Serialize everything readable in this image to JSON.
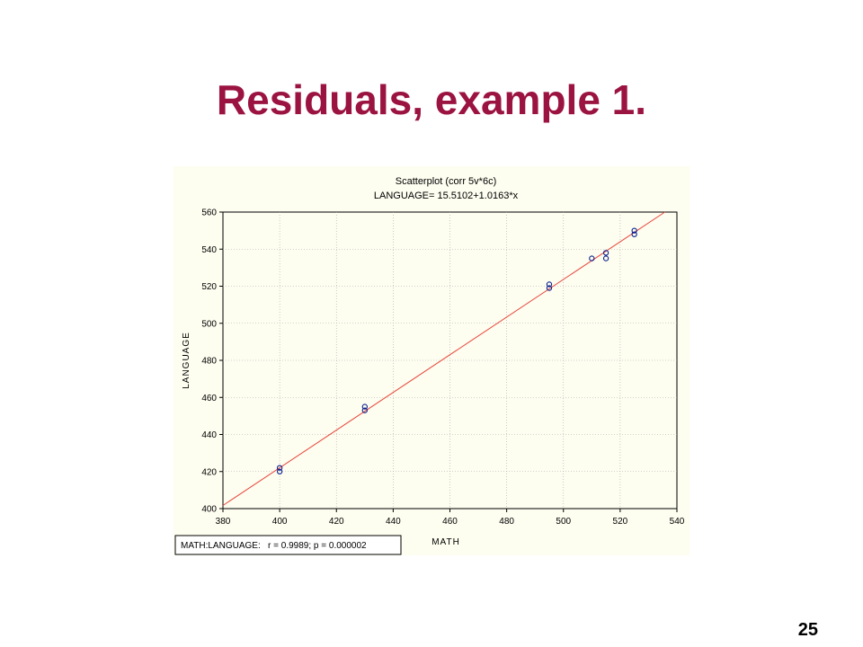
{
  "slide": {
    "title": "Residuals, example 1.",
    "page_number": "25"
  },
  "chart_data": {
    "type": "scatter",
    "title": "Scatterplot (corr 5v*6c)",
    "subtitle": "LANGUAGE= 15.5102+1.0163*x",
    "xlabel": "MATH",
    "ylabel": "LANGUAGE",
    "xlim": [
      380,
      540
    ],
    "ylim": [
      400,
      560
    ],
    "xticks": [
      "380",
      "400",
      "420",
      "440",
      "460",
      "480",
      "500",
      "520",
      "540"
    ],
    "yticks": [
      "400",
      "420",
      "440",
      "460",
      "480",
      "500",
      "520",
      "540",
      "560"
    ],
    "grid": true,
    "stats_box": "MATH:LANGUAGE:   r = 0.9989; p = 0.000002",
    "regression": {
      "intercept": 15.5102,
      "slope": 1.0163,
      "color": "#e8463c"
    },
    "points": [
      {
        "x": 400,
        "y": 422
      },
      {
        "x": 400,
        "y": 420
      },
      {
        "x": 430,
        "y": 455
      },
      {
        "x": 430,
        "y": 453
      },
      {
        "x": 495,
        "y": 521
      },
      {
        "x": 495,
        "y": 519
      },
      {
        "x": 510,
        "y": 535
      },
      {
        "x": 515,
        "y": 538
      },
      {
        "x": 515,
        "y": 535
      },
      {
        "x": 525,
        "y": 550
      },
      {
        "x": 525,
        "y": 548
      }
    ],
    "colors": {
      "marker": "#0a1f8c",
      "background": "#fdfdf0",
      "grid": "#aaaaaa"
    }
  }
}
